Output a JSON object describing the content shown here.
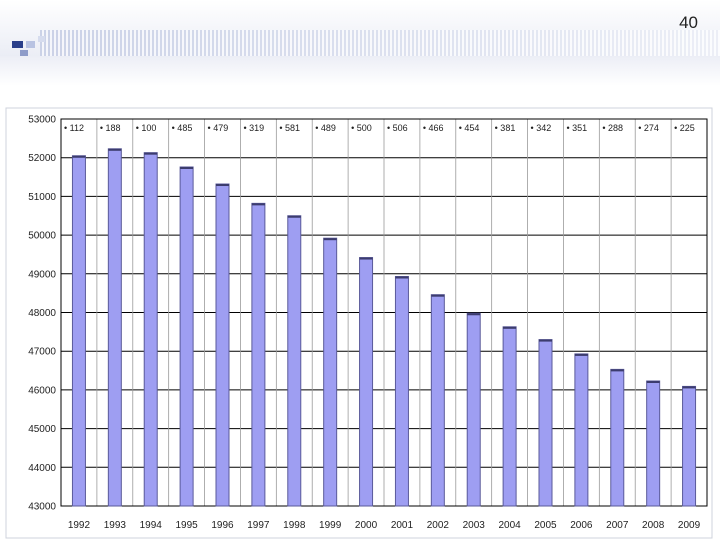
{
  "slide": {
    "page_number": "40"
  },
  "chart_data": {
    "type": "bar",
    "categories": [
      "1992",
      "1993",
      "1994",
      "1995",
      "1996",
      "1997",
      "1998",
      "1999",
      "2000",
      "2001",
      "2002",
      "2003",
      "2004",
      "2005",
      "2006",
      "2007",
      "2008",
      "2009"
    ],
    "values": [
      52050,
      52230,
      52130,
      51760,
      51320,
      50820,
      50500,
      49920,
      49420,
      48930,
      48460,
      47980,
      47630,
      47300,
      46930,
      46530,
      46230,
      46090
    ],
    "data_labels": [
      "• 112",
      "• 188",
      "• 100",
      "• 485",
      "• 479",
      "• 319",
      "• 581",
      "• 489",
      "• 500",
      "• 506",
      "• 466",
      "• 454",
      "• 381",
      "• 342",
      "• 351",
      "• 288",
      "• 274",
      "• 225"
    ],
    "ylim": [
      43000,
      53000
    ],
    "yticks": [
      43000,
      44000,
      45000,
      46000,
      47000,
      48000,
      49000,
      50000,
      51000,
      52000,
      53000
    ],
    "grid": true,
    "bar_color": "#9e9ef2",
    "bar_edge_color": "#5a5a9a"
  }
}
